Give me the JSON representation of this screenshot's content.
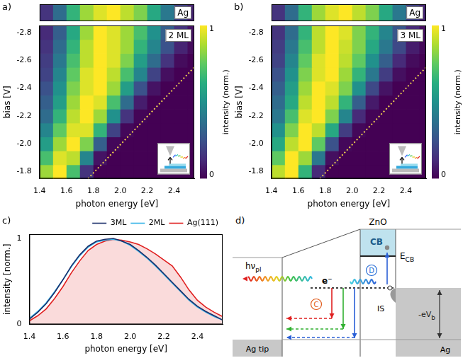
{
  "chart_data": [
    {
      "panel": "a)",
      "type": "heatmap",
      "title": "2 ML",
      "reference": {
        "title": "Ag",
        "values": [
          0.15,
          0.35,
          0.65,
          0.85,
          0.95,
          1.0,
          0.9,
          0.8,
          0.6,
          0.4,
          0.2,
          0.1
        ]
      },
      "x_label": "photon energy [eV]",
      "y_label": "bias [V]",
      "x_bins": [
        1.4,
        1.5,
        1.6,
        1.7,
        1.8,
        1.9,
        2.0,
        2.1,
        2.2,
        2.3,
        2.4,
        2.5,
        2.55
      ],
      "y_bins": [
        -1.75,
        -1.85,
        -1.95,
        -2.05,
        -2.15,
        -2.25,
        -2.35,
        -2.45,
        -2.55,
        -2.65,
        -2.75,
        -2.85
      ],
      "values": [
        [
          0.85,
          1.0,
          0.7,
          0.15,
          0,
          0,
          0,
          0,
          0,
          0,
          0,
          0
        ],
        [
          0.7,
          0.95,
          0.9,
          0.45,
          0.05,
          0,
          0,
          0,
          0,
          0,
          0,
          0
        ],
        [
          0.55,
          0.85,
          1.0,
          0.8,
          0.3,
          0.02,
          0,
          0,
          0,
          0,
          0,
          0
        ],
        [
          0.45,
          0.75,
          0.95,
          0.95,
          0.65,
          0.2,
          0.02,
          0,
          0,
          0,
          0,
          0
        ],
        [
          0.35,
          0.65,
          0.9,
          1.0,
          0.85,
          0.5,
          0.15,
          0.01,
          0,
          0,
          0,
          0
        ],
        [
          0.3,
          0.55,
          0.85,
          1.0,
          0.95,
          0.7,
          0.35,
          0.08,
          0,
          0,
          0,
          0
        ],
        [
          0.25,
          0.5,
          0.8,
          0.95,
          1.0,
          0.85,
          0.55,
          0.25,
          0.05,
          0,
          0,
          0
        ],
        [
          0.2,
          0.45,
          0.75,
          0.95,
          1.0,
          0.9,
          0.7,
          0.45,
          0.2,
          0.04,
          0,
          0
        ],
        [
          0.18,
          0.4,
          0.7,
          0.9,
          1.0,
          0.95,
          0.8,
          0.55,
          0.35,
          0.15,
          0.03,
          0
        ],
        [
          0.15,
          0.35,
          0.65,
          0.9,
          1.0,
          0.95,
          0.85,
          0.65,
          0.45,
          0.25,
          0.1,
          0.03
        ],
        [
          0.12,
          0.3,
          0.6,
          0.85,
          1.0,
          0.95,
          0.85,
          0.7,
          0.5,
          0.3,
          0.15,
          0.05
        ]
      ],
      "xlim": [
        1.4,
        2.55
      ],
      "ylim": [
        -1.75,
        -2.85
      ],
      "xticks": [
        1.4,
        1.6,
        1.8,
        {
          "value": 2,
          "label": "2.0"
        },
        2.2,
        2.4
      ],
      "yticks": [
        -2.8,
        -2.6,
        -2.4,
        -2.2,
        {
          "value": -2,
          "label": "-2.0"
        },
        -1.8
      ],
      "colorbar": {
        "label": "intensity (norm.)",
        "range": [
          0,
          1
        ],
        "ticks": [
          0,
          1
        ]
      },
      "cutoff": {
        "x": [
          1.76,
          2.55
        ],
        "y": [
          -1.75,
          -2.55
        ],
        "color": "#f0d050",
        "line_style": "dotted"
      }
    },
    {
      "panel": "b)",
      "type": "heatmap",
      "title": "3 ML",
      "reference": {
        "title": "Ag",
        "values": [
          0.15,
          0.35,
          0.65,
          0.85,
          0.95,
          1.0,
          0.9,
          0.8,
          0.6,
          0.4,
          0.2,
          0.1
        ]
      },
      "x_label": "photon energy [eV]",
      "y_label": "bias [V]",
      "x_bins": [
        1.4,
        1.5,
        1.6,
        1.7,
        1.8,
        1.9,
        2.0,
        2.1,
        2.2,
        2.3,
        2.4,
        2.5,
        2.55
      ],
      "y_bins": [
        -1.75,
        -1.85,
        -1.95,
        -2.05,
        -2.15,
        -2.25,
        -2.35,
        -2.45,
        -2.55,
        -2.65,
        -2.75,
        -2.85
      ],
      "values": [
        [
          0.9,
          1.0,
          0.65,
          0.12,
          0,
          0,
          0,
          0,
          0,
          0,
          0,
          0
        ],
        [
          0.75,
          1.0,
          0.85,
          0.4,
          0.04,
          0,
          0,
          0,
          0,
          0,
          0,
          0
        ],
        [
          0.6,
          0.9,
          1.0,
          0.75,
          0.25,
          0.02,
          0,
          0,
          0,
          0,
          0,
          0
        ],
        [
          0.5,
          0.8,
          1.0,
          0.9,
          0.6,
          0.18,
          0.02,
          0,
          0,
          0,
          0,
          0
        ],
        [
          0.4,
          0.7,
          0.95,
          1.0,
          0.8,
          0.45,
          0.12,
          0.01,
          0,
          0,
          0,
          0
        ],
        [
          0.35,
          0.6,
          0.9,
          1.0,
          0.9,
          0.65,
          0.3,
          0.07,
          0,
          0,
          0,
          0
        ],
        [
          0.3,
          0.55,
          0.85,
          1.0,
          0.95,
          0.8,
          0.5,
          0.22,
          0.05,
          0,
          0,
          0
        ],
        [
          0.25,
          0.5,
          0.8,
          0.95,
          1.0,
          0.85,
          0.65,
          0.4,
          0.18,
          0.04,
          0,
          0
        ],
        [
          0.2,
          0.45,
          0.75,
          0.95,
          1.0,
          0.9,
          0.75,
          0.5,
          0.3,
          0.12,
          0.03,
          0
        ],
        [
          0.18,
          0.4,
          0.7,
          0.9,
          1.0,
          0.92,
          0.8,
          0.6,
          0.4,
          0.22,
          0.08,
          0.02
        ],
        [
          0.15,
          0.35,
          0.65,
          0.9,
          1.0,
          0.95,
          0.8,
          0.65,
          0.45,
          0.27,
          0.12,
          0.04
        ]
      ],
      "xlim": [
        1.4,
        2.55
      ],
      "ylim": [
        -1.75,
        -2.85
      ],
      "xticks": [
        1.4,
        1.6,
        1.8,
        {
          "value": 2,
          "label": "2.0"
        },
        2.2,
        2.4
      ],
      "yticks": [
        -2.8,
        -2.6,
        -2.4,
        -2.2,
        {
          "value": -2,
          "label": "-2.0"
        },
        -1.8
      ],
      "colorbar": {
        "label": "intensity (norm.)",
        "range": [
          0,
          1
        ],
        "ticks": [
          0,
          1
        ]
      },
      "cutoff": {
        "x": [
          1.76,
          2.55
        ],
        "y": [
          -1.75,
          -2.55
        ],
        "color": "#f0d050",
        "line_style": "dotted"
      }
    },
    {
      "panel": "c)",
      "type": "line",
      "x": [
        1.4,
        1.45,
        1.5,
        1.55,
        1.6,
        1.65,
        1.7,
        1.75,
        1.8,
        1.85,
        1.9,
        1.95,
        2.0,
        2.05,
        2.1,
        2.15,
        2.2,
        2.25,
        2.3,
        2.35,
        2.4,
        2.45,
        2.5,
        2.55
      ],
      "series": [
        {
          "name": "3ML",
          "color": "#1b2f6b",
          "values": [
            0.06,
            0.14,
            0.24,
            0.37,
            0.52,
            0.68,
            0.81,
            0.91,
            0.97,
            0.99,
            1.0,
            0.97,
            0.93,
            0.86,
            0.78,
            0.69,
            0.59,
            0.49,
            0.39,
            0.29,
            0.21,
            0.15,
            0.1,
            0.05
          ]
        },
        {
          "name": "2ML",
          "color": "#35b3e8",
          "values": [
            0.07,
            0.15,
            0.25,
            0.38,
            0.52,
            0.67,
            0.8,
            0.9,
            0.96,
            0.98,
            0.99,
            0.97,
            0.92,
            0.85,
            0.77,
            0.68,
            0.58,
            0.48,
            0.38,
            0.28,
            0.2,
            0.14,
            0.09,
            0.05
          ]
        },
        {
          "name": "Ag(111)",
          "color": "#e02020",
          "type": "area",
          "values": [
            0.04,
            0.1,
            0.18,
            0.3,
            0.44,
            0.6,
            0.74,
            0.86,
            0.93,
            0.97,
            0.99,
            0.98,
            0.96,
            0.93,
            0.88,
            0.82,
            0.75,
            0.68,
            0.55,
            0.4,
            0.28,
            0.2,
            0.14,
            0.09
          ]
        }
      ],
      "x_label": "photon energy [eV]",
      "y_label": "intensity [norm.]",
      "xlim": [
        1.4,
        2.55
      ],
      "ylim": [
        0,
        1.05
      ],
      "xticks": [
        1.4,
        1.6,
        1.8,
        {
          "value": 2,
          "label": "2.0"
        },
        2.2,
        2.4
      ],
      "yticks": [
        0,
        1
      ],
      "legend": "top right",
      "grid": false
    }
  ],
  "diagram": {
    "letter": "d)",
    "material": "ZnO",
    "band": "CB",
    "cb_edge": {
      "main": "E",
      "sub": "CB"
    },
    "electron": "e⁻",
    "photon": {
      "main": "hν",
      "sub": "pl"
    },
    "process_c": "C",
    "process_d": "D",
    "state": "IS",
    "bias": {
      "main": "-eV",
      "sub": "b"
    },
    "tip": "Ag tip",
    "substrate": "Ag"
  }
}
